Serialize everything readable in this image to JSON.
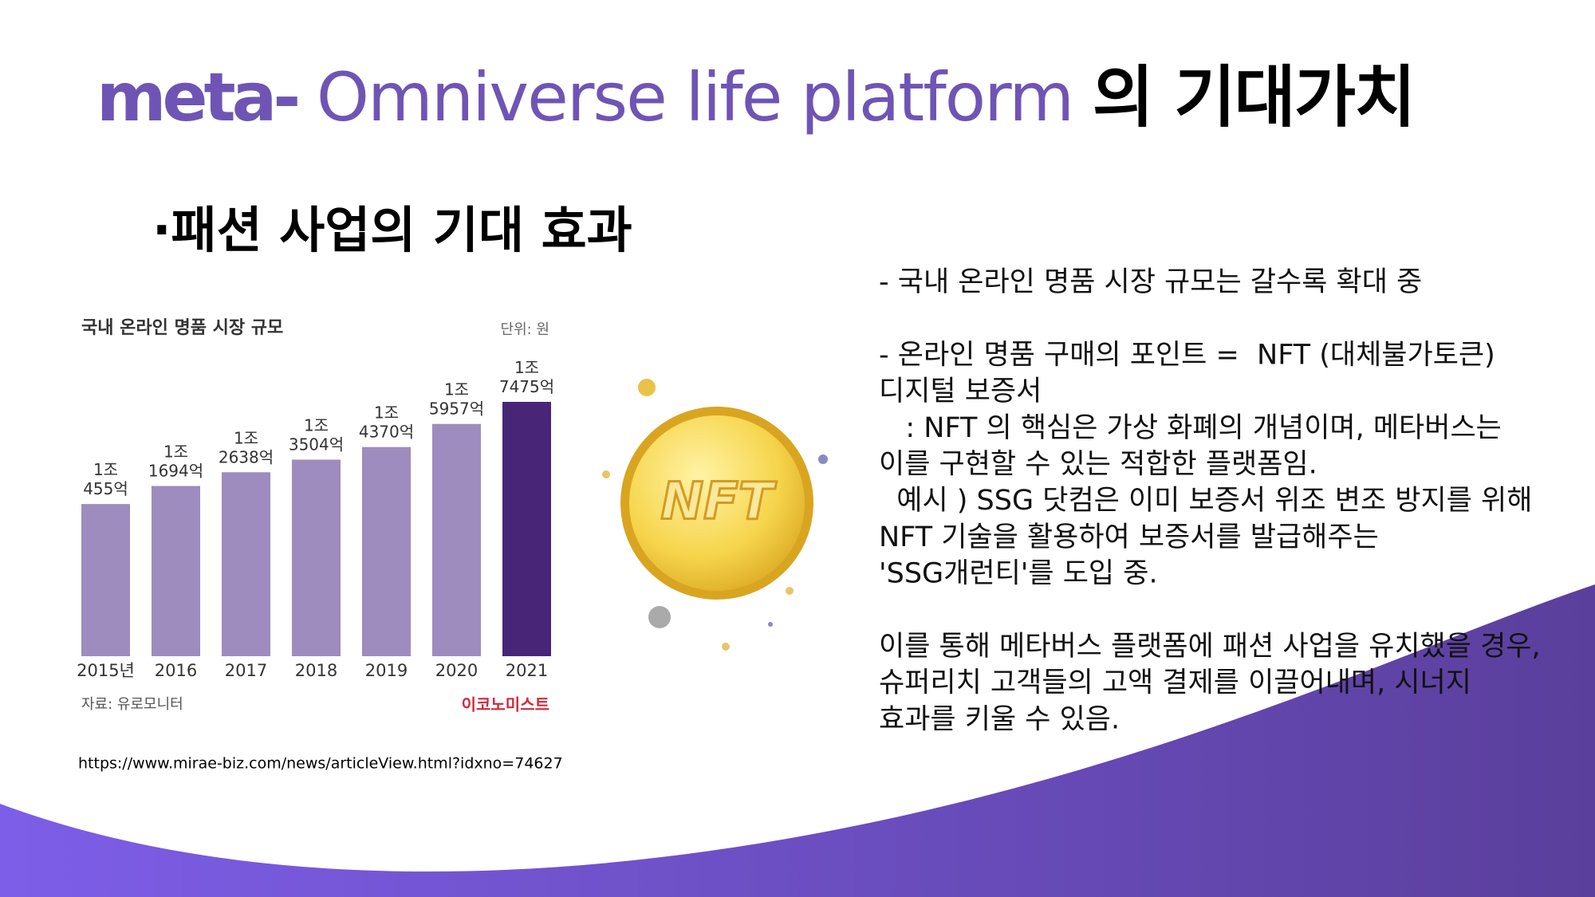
{
  "header": {
    "title_parts": [
      "meta-",
      "Omniverse life platform",
      "의 기대가치"
    ]
  },
  "subtitle": "·패션 사업의 기대 효과",
  "chart": {
    "type": "bar",
    "title": "국내 온라인 명품 시장 규모",
    "unit_note": "단위: 원",
    "categories": [
      "2015년",
      "2016",
      "2017",
      "2018",
      "2019",
      "2020",
      "2021"
    ],
    "values": [
      10455,
      11694,
      12638,
      13504,
      14370,
      15957,
      17475
    ],
    "value_labels": [
      "1조\n455억",
      "1조\n1694억",
      "1조\n2638억",
      "1조\n3504억",
      "1조\n4370억",
      "1조\n5957억",
      "1조\n7475억"
    ],
    "colors": [
      "#9d8cbd",
      "#9d8cbd",
      "#9d8cbd",
      "#9d8cbd",
      "#9d8cbd",
      "#9d8cbd",
      "#482577"
    ],
    "source": "자료: 유로모니터",
    "publisher": "이코노미스트"
  },
  "source_url": "https://www.mirae-biz.com/news/articleView.html?idxno=74627",
  "image": {
    "label": "NFT"
  },
  "body": {
    "paragraphs": [
      [
        "- 국내 온라인 명품 시장 규모는 갈수록 확대 중"
      ],
      [
        "- 온라인 명품 구매의 포인트 =  NFT (대체불가토큰)",
        "디지털 보증서",
        "   : NFT 의 핵심은 가상 화폐의 개념이며, 메타버스는",
        "이를 구현할 수 있는 적합한 플랫폼임.",
        "  예시 ) SSG 닷컴은 이미 보증서 위조 변조 방지를 위해",
        "NFT 기술을 활용하여 보증서를 발급해주는",
        "'SSG개런티'를 도입 중."
      ],
      [
        "이를 통해 메타버스 플랫폼에 패션 사업을 유치했을 경우,",
        "슈퍼리치 고객들의 고액 결제를 이끌어내며, 시너지",
        "효과를 키울 수 있음."
      ]
    ]
  }
}
